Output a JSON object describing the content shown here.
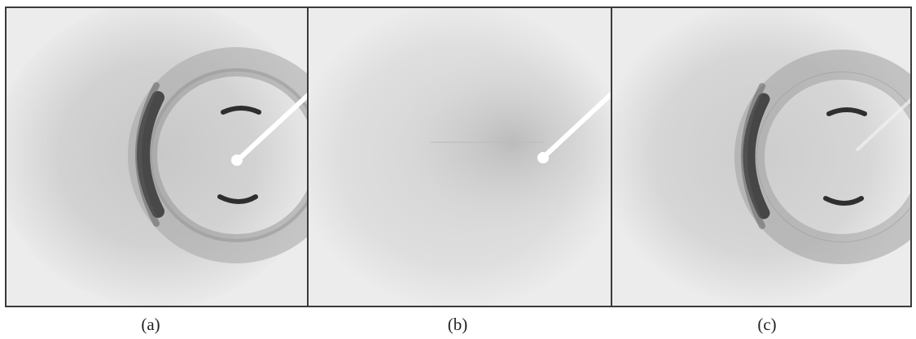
{
  "figure": {
    "panels": [
      {
        "id": "a",
        "label": "(a)"
      },
      {
        "id": "b",
        "label": "(b)"
      },
      {
        "id": "c",
        "label": "(c)"
      }
    ]
  },
  "colors": {
    "background": "#eeeeee",
    "frame": "#3a3a3a",
    "halo": "#d4d4d4",
    "ring": "#3c3c3c",
    "beamstop": "#ffffff"
  }
}
